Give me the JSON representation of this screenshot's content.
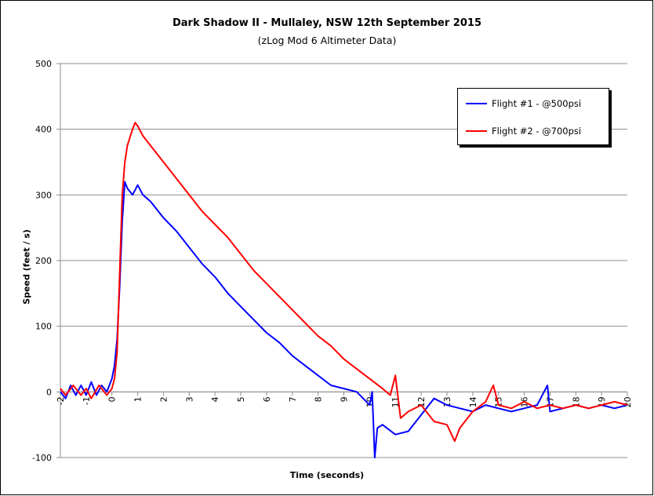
{
  "chart_data": {
    "type": "line",
    "title": "Dark Shadow II - Mullaley, NSW 12th September 2015",
    "subtitle": "(zLog Mod 6 Altimeter Data)",
    "xlabel": "Time (seconds)",
    "ylabel": "Speed (feet / s)",
    "xlim": [
      -2,
      20
    ],
    "ylim": [
      -100,
      500
    ],
    "yticks": [
      "-100",
      "0",
      "100",
      "200",
      "300",
      "400",
      "500"
    ],
    "xticks": [
      "-2",
      "-1",
      "0",
      "1",
      "2",
      "3",
      "4",
      "5",
      "6",
      "7",
      "8",
      "9",
      "10",
      "11",
      "12",
      "13",
      "14",
      "15",
      "16",
      "17",
      "18",
      "19",
      "20"
    ],
    "grid": "horizontal",
    "legend_position": "top-right",
    "series": [
      {
        "name": "Flight #1 - @500psi",
        "color": "#0000ff",
        "x": [
          -2,
          -1.8,
          -1.6,
          -1.4,
          -1.2,
          -1.0,
          -0.8,
          -0.6,
          -0.4,
          -0.2,
          0.0,
          0.1,
          0.2,
          0.3,
          0.4,
          0.5,
          0.6,
          0.8,
          1.0,
          1.2,
          1.5,
          2.0,
          2.5,
          3.0,
          3.5,
          4.0,
          4.5,
          5.0,
          5.5,
          6.0,
          6.5,
          7.0,
          7.5,
          8.0,
          8.5,
          9.0,
          9.5,
          10.0,
          10.1,
          10.2,
          10.3,
          10.5,
          11.0,
          11.5,
          12.0,
          12.5,
          13.0,
          13.5,
          14.0,
          14.5,
          15.0,
          15.5,
          16.0,
          16.5,
          16.9,
          17.0,
          17.5,
          18.0,
          18.5,
          19.0,
          19.5,
          20.0
        ],
        "y": [
          0,
          -10,
          10,
          -5,
          10,
          -5,
          15,
          -5,
          10,
          0,
          20,
          40,
          80,
          160,
          260,
          320,
          310,
          300,
          315,
          300,
          290,
          265,
          245,
          220,
          195,
          175,
          150,
          130,
          110,
          90,
          75,
          55,
          40,
          25,
          10,
          5,
          0,
          -20,
          0,
          -100,
          -55,
          -50,
          -65,
          -60,
          -35,
          -10,
          -20,
          -25,
          -30,
          -20,
          -25,
          -30,
          -25,
          -20,
          10,
          -30,
          -25,
          -20,
          -25,
          -20,
          -25,
          -20
        ]
      },
      {
        "name": "Flight #2 - @700psi",
        "color": "#ff0000",
        "x": [
          -2,
          -1.8,
          -1.5,
          -1.2,
          -1.0,
          -0.8,
          -0.5,
          -0.2,
          0.0,
          0.1,
          0.2,
          0.3,
          0.4,
          0.5,
          0.6,
          0.8,
          0.9,
          1.0,
          1.2,
          1.5,
          2.0,
          2.5,
          3.0,
          3.5,
          4.0,
          4.5,
          5.0,
          5.5,
          6.0,
          6.5,
          7.0,
          7.5,
          8.0,
          8.5,
          9.0,
          9.5,
          10.0,
          10.5,
          10.8,
          11.0,
          11.2,
          11.5,
          12.0,
          12.5,
          13.0,
          13.3,
          13.5,
          14.0,
          14.5,
          14.8,
          15.0,
          15.5,
          16.0,
          16.5,
          17.0,
          17.5,
          18.0,
          18.5,
          19.0,
          19.5,
          20.0
        ],
        "y": [
          5,
          -5,
          10,
          -5,
          5,
          -10,
          10,
          -5,
          5,
          20,
          60,
          180,
          300,
          350,
          375,
          400,
          410,
          405,
          390,
          375,
          350,
          325,
          300,
          275,
          255,
          235,
          210,
          185,
          165,
          145,
          125,
          105,
          85,
          70,
          50,
          35,
          20,
          5,
          -5,
          25,
          -40,
          -30,
          -20,
          -45,
          -50,
          -75,
          -55,
          -30,
          -15,
          10,
          -20,
          -25,
          -15,
          -25,
          -20,
          -25,
          -20,
          -25,
          -20,
          -15,
          -20
        ]
      }
    ]
  }
}
